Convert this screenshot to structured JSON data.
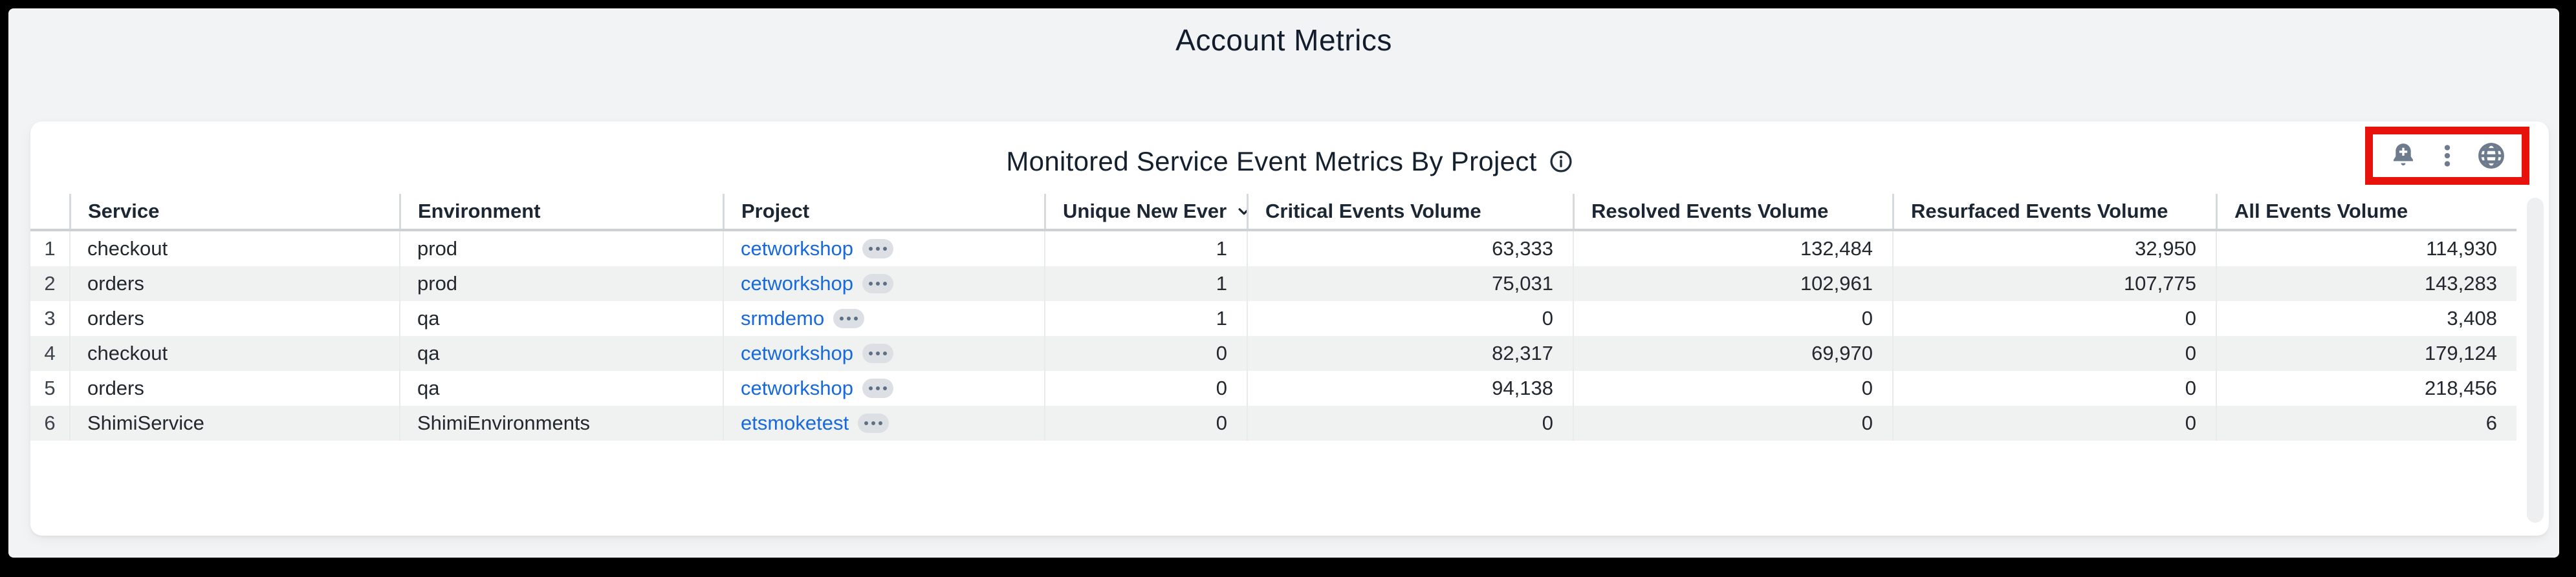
{
  "page": {
    "title": "Account Metrics"
  },
  "panel": {
    "title": "Monitored Service Event Metrics By Project",
    "colors": {
      "highlight_box": "#e8120c",
      "icon": "#6e7b8e",
      "link": "#1769e0",
      "title_text": "#15202f"
    },
    "actions": [
      {
        "label": "add-alert",
        "icon": "bell-plus-icon"
      },
      {
        "label": "more-options",
        "icon": "kebab-menu-icon"
      },
      {
        "label": "data-links",
        "icon": "globe-icon"
      }
    ]
  },
  "table": {
    "columns": [
      {
        "label": "",
        "key": "num"
      },
      {
        "label": "Service",
        "key": "service"
      },
      {
        "label": "Environment",
        "key": "environment"
      },
      {
        "label": "Project",
        "key": "project"
      },
      {
        "label": "Unique New Ever",
        "key": "unique_new_ever",
        "sort": "desc"
      },
      {
        "label": "Critical Events Volume",
        "key": "critical_events_volume"
      },
      {
        "label": "Resolved Events Volume",
        "key": "resolved_events_volume"
      },
      {
        "label": "Resurfaced Events Volume",
        "key": "resurfaced_events_volume"
      },
      {
        "label": "All Events Volume",
        "key": "all_events_volume"
      }
    ],
    "rows": [
      {
        "num": "1",
        "service": "checkout",
        "environment": "prod",
        "project": "cetworkshop",
        "unique_new_ever": "1",
        "critical_events_volume": "63,333",
        "resolved_events_volume": "132,484",
        "resurfaced_events_volume": "32,950",
        "all_events_volume": "114,930"
      },
      {
        "num": "2",
        "service": "orders",
        "environment": "prod",
        "project": "cetworkshop",
        "unique_new_ever": "1",
        "critical_events_volume": "75,031",
        "resolved_events_volume": "102,961",
        "resurfaced_events_volume": "107,775",
        "all_events_volume": "143,283"
      },
      {
        "num": "3",
        "service": "orders",
        "environment": "qa",
        "project": "srmdemo",
        "unique_new_ever": "1",
        "critical_events_volume": "0",
        "resolved_events_volume": "0",
        "resurfaced_events_volume": "0",
        "all_events_volume": "3,408"
      },
      {
        "num": "4",
        "service": "checkout",
        "environment": "qa",
        "project": "cetworkshop",
        "unique_new_ever": "0",
        "critical_events_volume": "82,317",
        "resolved_events_volume": "69,970",
        "resurfaced_events_volume": "0",
        "all_events_volume": "179,124"
      },
      {
        "num": "5",
        "service": "orders",
        "environment": "qa",
        "project": "cetworkshop",
        "unique_new_ever": "0",
        "critical_events_volume": "94,138",
        "resolved_events_volume": "0",
        "resurfaced_events_volume": "0",
        "all_events_volume": "218,456"
      },
      {
        "num": "6",
        "service": "ShimiService",
        "environment": "ShimiEnvironments",
        "project": "etsmoketest",
        "unique_new_ever": "0",
        "critical_events_volume": "0",
        "resolved_events_volume": "0",
        "resurfaced_events_volume": "0",
        "all_events_volume": "6"
      }
    ]
  }
}
